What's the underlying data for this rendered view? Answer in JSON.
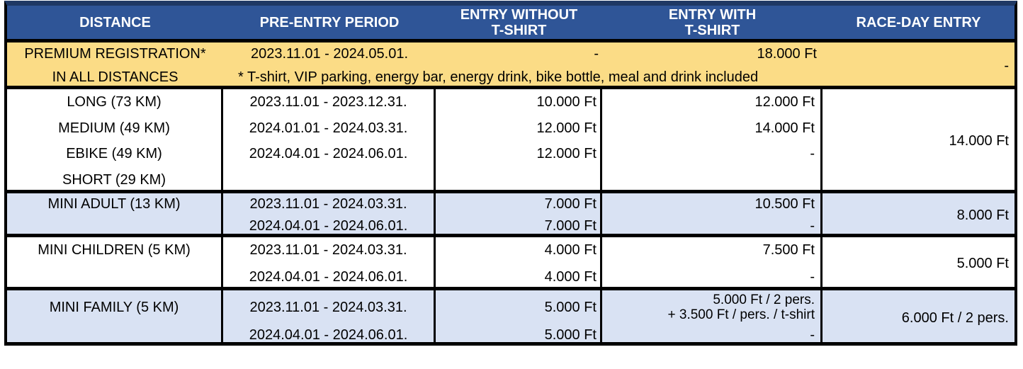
{
  "colors": {
    "header_bg": "#2F5597",
    "outer_top_border": "#1F3864",
    "premium_bg": "#FBDC86",
    "alt_row_bg": "#D9E2F3",
    "border": "#000000",
    "header_text": "#FFFFFF",
    "body_text": "#000000"
  },
  "header": {
    "distance": "DISTANCE",
    "pre_entry_period": "PRE-ENTRY PERIOD",
    "entry_without_tshirt": "ENTRY WITHOUT\nT-SHIRT",
    "entry_with_tshirt": "ENTRY WITH\nT-SHIRT",
    "race_day_entry": "RACE-DAY ENTRY"
  },
  "premium": {
    "title": "PREMIUM REGISTRATION*",
    "subtitle": "IN ALL DISTANCES",
    "period": "2023.11.01 - 2024.05.01.",
    "without_tshirt": "-",
    "with_tshirt": "18.000 Ft",
    "race_day": "-",
    "note": "* T-shirt, VIP parking, energy bar, energy drink, bike bottle, meal and drink included"
  },
  "sections": [
    {
      "name": "long-medium-ebike-short",
      "distances": [
        "LONG (73 KM)",
        "MEDIUM (49 KM)",
        "EBIKE (49 KM)",
        "SHORT (29 KM)"
      ],
      "periods": [
        "2023.11.01 - 2023.12.31.",
        "2024.01.01 - 2024.03.31.",
        "2024.04.01 - 2024.06.01."
      ],
      "without_tshirt": [
        "10.000 Ft",
        "12.000 Ft",
        "12.000 Ft"
      ],
      "with_tshirt": [
        "12.000 Ft",
        "14.000 Ft",
        "-"
      ],
      "race_day": "14.000 Ft"
    },
    {
      "name": "mini-adult",
      "distances": [
        "MINI ADULT (13 KM)"
      ],
      "periods": [
        "2023.11.01 - 2024.03.31.",
        "2024.04.01 - 2024.06.01."
      ],
      "without_tshirt": [
        "7.000 Ft",
        "7.000 Ft"
      ],
      "with_tshirt": [
        "10.500 Ft",
        "-"
      ],
      "race_day": "8.000 Ft"
    },
    {
      "name": "mini-children",
      "distances": [
        "MINI CHILDREN (5 KM)"
      ],
      "periods": [
        "2023.11.01 - 2024.03.31.",
        "2024.04.01 - 2024.06.01."
      ],
      "without_tshirt": [
        "4.000 Ft",
        "4.000 Ft"
      ],
      "with_tshirt": [
        "7.500 Ft",
        "-"
      ],
      "race_day": "5.000 Ft"
    },
    {
      "name": "mini-family",
      "distances": [
        "MINI FAMILY (5 KM)"
      ],
      "periods": [
        "2023.11.01 - 2024.03.31.",
        "2024.04.01 - 2024.06.01."
      ],
      "without_tshirt": [
        "5.000 Ft",
        "5.000 Ft"
      ],
      "with_tshirt": [
        "5.000 Ft / 2 pers.\n+ 3.500 Ft / pers. / t-shirt",
        "-"
      ],
      "race_day": "6.000 Ft / 2 pers."
    }
  ]
}
